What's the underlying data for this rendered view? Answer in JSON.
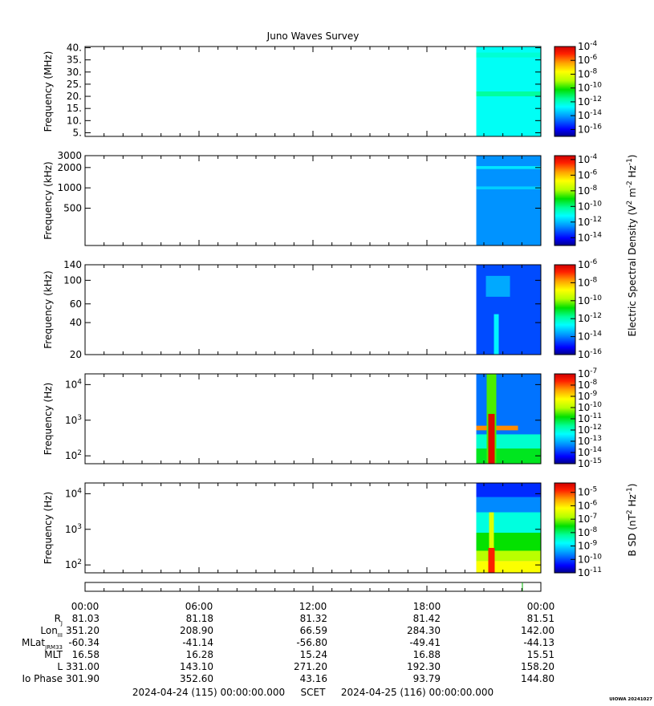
{
  "chart_data": {
    "type": "heatmap",
    "title": "Juno Waves Survey",
    "color_scale": "rainbow",
    "panels": [
      {
        "id": "p1",
        "ylabel": "Frequency (MHz)",
        "yscale": "linear",
        "ylim": [
          3.5,
          40.5
        ],
        "yticks": [
          {
            "v": 5,
            "t": "5."
          },
          {
            "v": 10,
            "t": "10."
          },
          {
            "v": 15,
            "t": "15."
          },
          {
            "v": 20,
            "t": "20."
          },
          {
            "v": 25,
            "t": "25."
          },
          {
            "v": 30,
            "t": "30."
          },
          {
            "v": 35,
            "t": "35."
          },
          {
            "v": 40,
            "t": "40."
          }
        ],
        "colorbar_ticks": [
          {
            "v": -4,
            "t": "10",
            "e": "-4"
          },
          {
            "v": -6,
            "t": "10",
            "e": "-6"
          },
          {
            "v": -8,
            "t": "10",
            "e": "-8"
          },
          {
            "v": -10,
            "t": "10",
            "e": "-10"
          },
          {
            "v": -12,
            "t": "10",
            "e": "-12"
          },
          {
            "v": -14,
            "t": "10",
            "e": "-14"
          },
          {
            "v": -16,
            "t": "10",
            "e": "-16"
          }
        ],
        "colorbar_range": [
          -17,
          -4
        ],
        "data_start_hour": 20.6,
        "dominant_log_value": -12.6
      },
      {
        "id": "p2",
        "ylabel": "Frequency (kHz)",
        "yscale": "log",
        "ylim": [
          140,
          3000
        ],
        "yticks": [
          {
            "v": 500,
            "t": "500"
          },
          {
            "v": 1000,
            "t": "1000"
          },
          {
            "v": 2000,
            "t": "2000"
          },
          {
            "v": 3000,
            "t": "3000"
          }
        ],
        "colorbar_ticks": [
          {
            "v": -4,
            "t": "10",
            "e": "-4"
          },
          {
            "v": -6,
            "t": "10",
            "e": "-6"
          },
          {
            "v": -8,
            "t": "10",
            "e": "-8"
          },
          {
            "v": -10,
            "t": "10",
            "e": "-10"
          },
          {
            "v": -12,
            "t": "10",
            "e": "-12"
          },
          {
            "v": -14,
            "t": "10",
            "e": "-14"
          }
        ],
        "colorbar_range": [
          -15,
          -3.5
        ],
        "data_start_hour": 20.6,
        "dominant_log_value": -12.5
      },
      {
        "id": "p3",
        "ylabel": "Frequency (kHz)",
        "yscale": "log",
        "ylim": [
          20,
          140
        ],
        "yticks": [
          {
            "v": 20,
            "t": "20"
          },
          {
            "v": 40,
            "t": "40"
          },
          {
            "v": 60,
            "t": "60"
          },
          {
            "v": 100,
            "t": "100"
          },
          {
            "v": 140,
            "t": "140"
          }
        ],
        "colorbar_ticks": [
          {
            "v": -6,
            "t": "10",
            "e": "-6"
          },
          {
            "v": -8,
            "t": "10",
            "e": "-8"
          },
          {
            "v": -10,
            "t": "10",
            "e": "-10"
          },
          {
            "v": -12,
            "t": "10",
            "e": "-12"
          },
          {
            "v": -14,
            "t": "10",
            "e": "-14"
          },
          {
            "v": -16,
            "t": "10",
            "e": "-16"
          }
        ],
        "colorbar_range": [
          -16,
          -6
        ],
        "data_start_hour": 20.6,
        "dominant_log_value": -14.5
      },
      {
        "id": "p4",
        "ylabel": "Frequency (Hz)",
        "yscale": "log",
        "ylim": [
          60,
          20000
        ],
        "yticks": [
          {
            "v": 100,
            "t": "10",
            "e": "2"
          },
          {
            "v": 1000,
            "t": "10",
            "e": "3"
          },
          {
            "v": 10000,
            "t": "10",
            "e": "4"
          }
        ],
        "colorbar_ticks": [
          {
            "v": -7,
            "t": "10",
            "e": "-7"
          },
          {
            "v": -8,
            "t": "10",
            "e": "-8"
          },
          {
            "v": -9,
            "t": "10",
            "e": "-9"
          },
          {
            "v": -10,
            "t": "10",
            "e": "-10"
          },
          {
            "v": -11,
            "t": "10",
            "e": "-11"
          },
          {
            "v": -12,
            "t": "10",
            "e": "-12"
          },
          {
            "v": -13,
            "t": "10",
            "e": "-13"
          },
          {
            "v": -14,
            "t": "10",
            "e": "-14"
          },
          {
            "v": -15,
            "t": "10",
            "e": "-15"
          }
        ],
        "colorbar_range": [
          -15,
          -7
        ],
        "data_start_hour": 20.6,
        "dominant_log_value": -13.5
      },
      {
        "id": "p5",
        "ylabel": "Frequency (Hz)",
        "yscale": "log",
        "ylim": [
          60,
          20000
        ],
        "yticks": [
          {
            "v": 100,
            "t": "10",
            "e": "2"
          },
          {
            "v": 1000,
            "t": "10",
            "e": "3"
          },
          {
            "v": 10000,
            "t": "10",
            "e": "4"
          }
        ],
        "colorbar_ticks": [
          {
            "v": -5,
            "t": "10",
            "e": "-5"
          },
          {
            "v": -6,
            "t": "10",
            "e": "-6"
          },
          {
            "v": -7,
            "t": "10",
            "e": "-7"
          },
          {
            "v": -8,
            "t": "10",
            "e": "-8"
          },
          {
            "v": -9,
            "t": "10",
            "e": "-9"
          },
          {
            "v": -10,
            "t": "10",
            "e": "-10"
          },
          {
            "v": -11,
            "t": "10",
            "e": "-11"
          }
        ],
        "colorbar_range": [
          -11,
          -4.3
        ],
        "data_start_hour": 20.6,
        "dominant_log_value": -9.5
      }
    ],
    "colorbar_label_e": "Electric Spectral Density (V",
    "colorbar_label_e_sup1": "2",
    "colorbar_label_e_mid": " m",
    "colorbar_label_e_sup2": "-2",
    "colorbar_label_e_mid2": " Hz",
    "colorbar_label_e_sup3": "-1",
    "colorbar_label_e_end": ")",
    "colorbar_label_b": "B SD (nT",
    "colorbar_label_b_sup1": "2",
    "colorbar_label_b_mid": " Hz",
    "colorbar_label_b_sup2": "-1",
    "colorbar_label_b_end": ")",
    "x_range_hours": [
      0,
      24
    ],
    "x_tick_labels": [
      {
        "h": 0,
        "t": "00:00"
      },
      {
        "h": 6,
        "t": "06:00"
      },
      {
        "h": 12,
        "t": "12:00"
      },
      {
        "h": 18,
        "t": "18:00"
      },
      {
        "h": 24,
        "t": "00:00"
      }
    ],
    "ephemeris": [
      {
        "label": "R",
        "sub": "J",
        "values": [
          "81.03",
          "81.18",
          "81.32",
          "81.42",
          "81.51"
        ]
      },
      {
        "label": "Lon",
        "sub": "III",
        "values": [
          "351.20",
          "208.90",
          "66.59",
          "284.30",
          "142.00"
        ]
      },
      {
        "label": "MLat",
        "sub": "JRM33",
        "values": [
          "-60.34",
          "-41.14",
          "-56.80",
          "-49.41",
          "-44.13"
        ]
      },
      {
        "label": "MLT",
        "sub": "",
        "values": [
          "16.58",
          "16.28",
          "15.24",
          "16.88",
          "15.51"
        ]
      },
      {
        "label": "L",
        "sub": "",
        "values": [
          "331.00",
          "143.10",
          "271.20",
          "192.30",
          "158.20"
        ]
      },
      {
        "label": "Io Phase",
        "sub": "",
        "values": [
          "301.90",
          "352.60",
          "43.16",
          "93.79",
          "144.80"
        ]
      }
    ],
    "time_start": "2024-04-24 (115) 00:00:00.000",
    "time_mid": "SCET",
    "time_end": "2024-04-25 (116) 00:00:00.000",
    "credit": "UIOWA 20241027"
  }
}
